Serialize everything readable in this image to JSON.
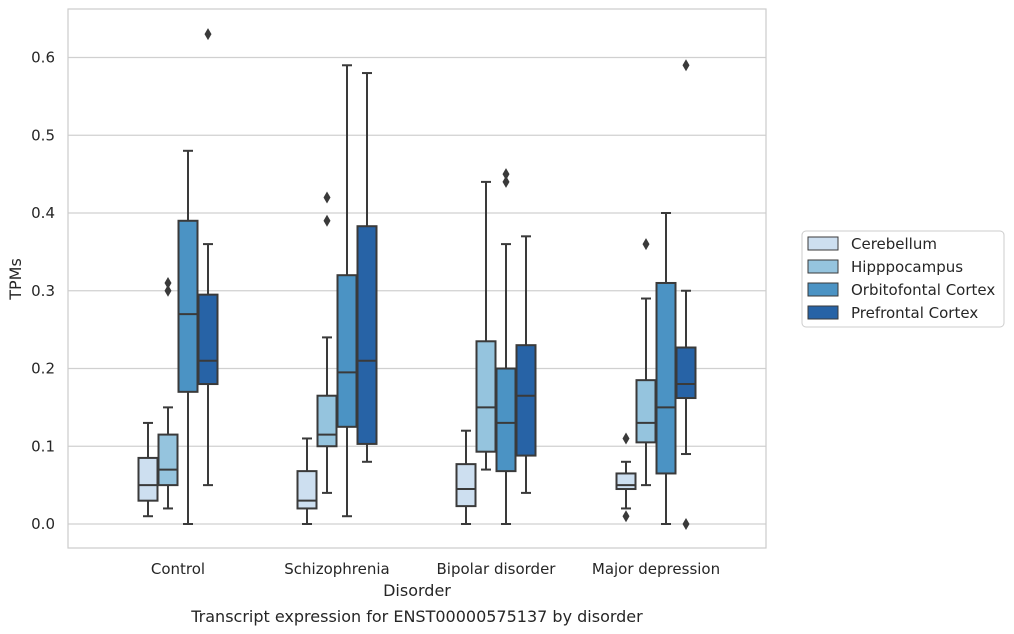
{
  "chart_data": {
    "type": "box",
    "caption": "Transcript expression for ENST00000575137 by disorder",
    "xlabel": "Disorder",
    "ylabel": "TPMs",
    "ylim": [
      -0.03,
      0.66
    ],
    "yticks": [
      0.0,
      0.1,
      0.2,
      0.3,
      0.4,
      0.5,
      0.6
    ],
    "ytick_labels": [
      "0.0",
      "0.1",
      "0.2",
      "0.3",
      "0.4",
      "0.5",
      "0.6"
    ],
    "grid": "horizontal",
    "legend_position": "right",
    "categories": [
      "Control",
      "Schizophrenia",
      "Bipolar disorder",
      "Major depression"
    ],
    "series": [
      {
        "name": "Cerebellum",
        "color": "#cddff0",
        "boxes": [
          {
            "whisker_low": 0.01,
            "q1": 0.03,
            "median": 0.05,
            "q3": 0.085,
            "whisker_high": 0.13,
            "outliers": []
          },
          {
            "whisker_low": 0.0,
            "q1": 0.02,
            "median": 0.03,
            "q3": 0.068,
            "whisker_high": 0.11,
            "outliers": []
          },
          {
            "whisker_low": 0.0,
            "q1": 0.023,
            "median": 0.045,
            "q3": 0.077,
            "whisker_high": 0.12,
            "outliers": []
          },
          {
            "whisker_low": 0.02,
            "q1": 0.045,
            "median": 0.05,
            "q3": 0.065,
            "whisker_high": 0.08,
            "outliers": [
              0.01,
              0.11
            ]
          }
        ]
      },
      {
        "name": "Hipppocampus",
        "color": "#95c4de",
        "boxes": [
          {
            "whisker_low": 0.02,
            "q1": 0.05,
            "median": 0.07,
            "q3": 0.115,
            "whisker_high": 0.15,
            "outliers": [
              0.3,
              0.31
            ]
          },
          {
            "whisker_low": 0.04,
            "q1": 0.1,
            "median": 0.115,
            "q3": 0.165,
            "whisker_high": 0.24,
            "outliers": [
              0.39,
              0.42
            ]
          },
          {
            "whisker_low": 0.07,
            "q1": 0.093,
            "median": 0.15,
            "q3": 0.235,
            "whisker_high": 0.44,
            "outliers": []
          },
          {
            "whisker_low": 0.05,
            "q1": 0.105,
            "median": 0.13,
            "q3": 0.185,
            "whisker_high": 0.29,
            "outliers": [
              0.36
            ]
          }
        ]
      },
      {
        "name": "Orbitofontal Cortex",
        "color": "#4b93c4",
        "boxes": [
          {
            "whisker_low": 0.0,
            "q1": 0.17,
            "median": 0.27,
            "q3": 0.39,
            "whisker_high": 0.48,
            "outliers": []
          },
          {
            "whisker_low": 0.01,
            "q1": 0.125,
            "median": 0.195,
            "q3": 0.32,
            "whisker_high": 0.59,
            "outliers": []
          },
          {
            "whisker_low": 0.0,
            "q1": 0.068,
            "median": 0.13,
            "q3": 0.2,
            "whisker_high": 0.36,
            "outliers": [
              0.44,
              0.45
            ]
          },
          {
            "whisker_low": 0.0,
            "q1": 0.065,
            "median": 0.15,
            "q3": 0.31,
            "whisker_high": 0.4,
            "outliers": []
          }
        ]
      },
      {
        "name": "Prefrontal Cortex",
        "color": "#2763a6",
        "boxes": [
          {
            "whisker_low": 0.05,
            "q1": 0.18,
            "median": 0.21,
            "q3": 0.295,
            "whisker_high": 0.36,
            "outliers": [
              0.63
            ]
          },
          {
            "whisker_low": 0.08,
            "q1": 0.103,
            "median": 0.21,
            "q3": 0.383,
            "whisker_high": 0.58,
            "outliers": []
          },
          {
            "whisker_low": 0.04,
            "q1": 0.088,
            "median": 0.165,
            "q3": 0.23,
            "whisker_high": 0.37,
            "outliers": []
          },
          {
            "whisker_low": 0.09,
            "q1": 0.162,
            "median": 0.18,
            "q3": 0.227,
            "whisker_high": 0.3,
            "outliers": [
              0.0,
              0.59
            ]
          }
        ]
      }
    ]
  }
}
